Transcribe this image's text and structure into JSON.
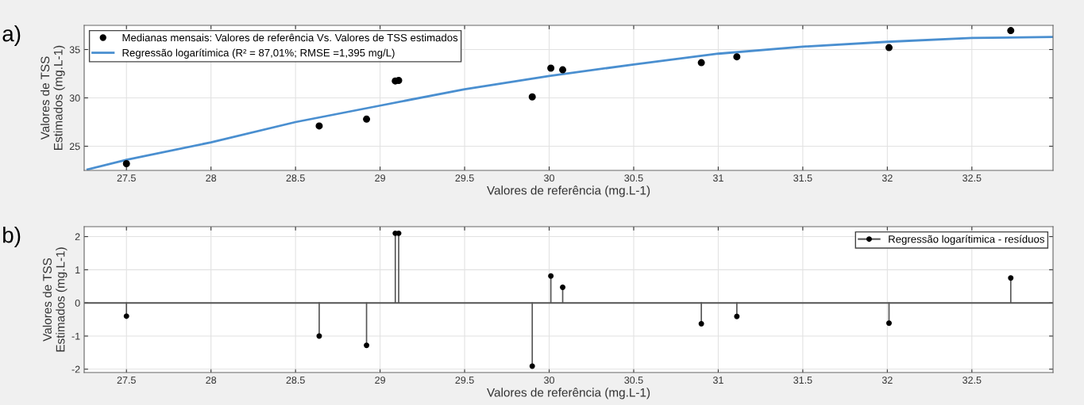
{
  "chart_data": [
    {
      "type": "scatter",
      "annotations": [
        "a)"
      ],
      "xlabel": "Valores de referência (mg.L-1)",
      "ylabel": "Valores de TSS\nEstimados (mg.L-1)",
      "xlim": [
        27.25,
        32.98
      ],
      "xticks": [
        27.5,
        28,
        28.5,
        29,
        29.5,
        30,
        30.5,
        31,
        31.5,
        32,
        32.5
      ],
      "ylim": [
        22.5,
        37.5
      ],
      "yticks": [
        25,
        30,
        35
      ],
      "grid": true,
      "legend": "top left",
      "x": [
        27.5,
        28.64,
        28.92,
        29.09,
        29.11,
        29.9,
        30.01,
        30.08,
        30.9,
        31.11,
        32.01,
        32.73
      ],
      "series": [
        {
          "name": "Medianas mensais: Valores de referência Vs. Valores de TSS estimados",
          "color": "#000000",
          "marker": "circle",
          "values": [
            23.2,
            27.1,
            27.8,
            31.75,
            31.8,
            30.1,
            33.07,
            32.9,
            33.64,
            34.25,
            35.2,
            36.96
          ]
        },
        {
          "name": "Regressão logarítimica (R² = 87,01%; RMSE =1,395 mg/L)",
          "type": "line",
          "color": "#4a8fd0",
          "marker": "none",
          "line_style": "solid",
          "x": [
            27.27,
            27.5,
            28,
            28.5,
            29,
            29.5,
            30,
            30.5,
            31,
            31.5,
            32,
            32.5,
            32.98
          ],
          "values": [
            22.6,
            23.6,
            25.4,
            27.5,
            29.2,
            30.9,
            32.26,
            33.46,
            34.57,
            35.3,
            35.8,
            36.2,
            36.3
          ]
        }
      ]
    },
    {
      "type": "lollipop",
      "annotations": [
        "b)"
      ],
      "xlabel": "Valores de referência (mg.L-1)",
      "ylabel": "Valores de TSS\nEstimados (mg.L-1)",
      "xlim": [
        27.25,
        32.98
      ],
      "xticks": [
        27.5,
        28,
        28.5,
        29,
        29.5,
        30,
        30.5,
        31,
        31.5,
        32,
        32.5
      ],
      "ylim": [
        -2.1,
        2.3
      ],
      "yticks": [
        {
          "value": -2,
          "label": "-2"
        },
        {
          "value": -1,
          "label": "-1"
        },
        0,
        1,
        2
      ],
      "grid": true,
      "legend": "top right",
      "marker": "circle",
      "x": [
        27.5,
        28.64,
        28.92,
        29.09,
        29.11,
        29.9,
        30.01,
        30.08,
        30.9,
        31.11,
        32.01,
        32.73
      ],
      "series": [
        {
          "name": "Regressão logarítimica - resíduos",
          "color": "#000000",
          "values": [
            -0.4,
            -1.0,
            -1.28,
            2.1,
            2.1,
            -1.91,
            0.81,
            0.47,
            -0.63,
            -0.41,
            -0.61,
            0.75
          ]
        }
      ]
    }
  ]
}
